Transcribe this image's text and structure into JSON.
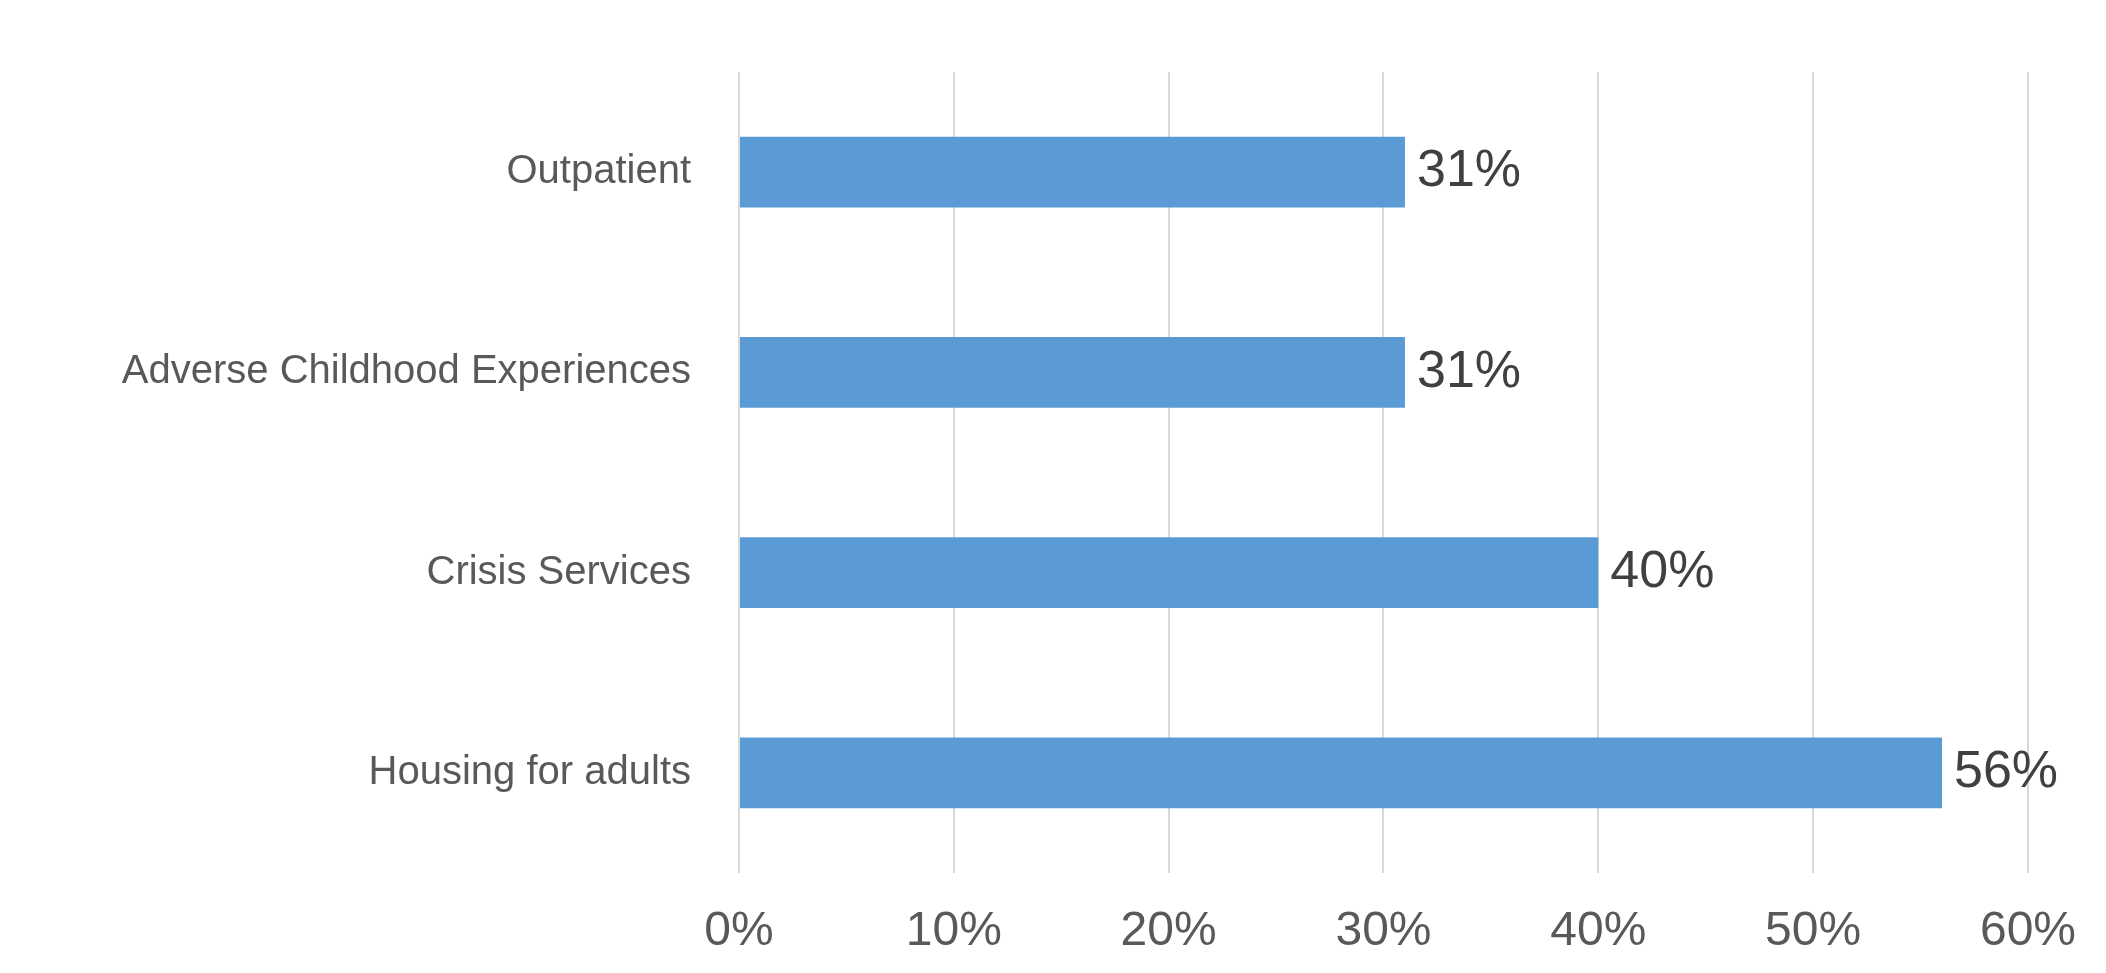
{
  "chart_data": {
    "type": "bar",
    "orientation": "horizontal",
    "categories": [
      "Outpatient",
      "Adverse Childhood Experiences",
      "Crisis Services",
      "Housing for adults"
    ],
    "values": [
      31,
      31,
      40,
      56
    ],
    "color": "#5b9bd5",
    "value_labels": [
      "31%",
      "31%",
      "40%",
      "56%"
    ],
    "xlim": [
      0,
      60
    ],
    "xticks": [
      {
        "value": 0,
        "label": "0%"
      },
      {
        "value": 10,
        "label": "10%"
      },
      {
        "value": 20,
        "label": "20%"
      },
      {
        "value": 30,
        "label": "30%"
      },
      {
        "value": 40,
        "label": "40%"
      },
      {
        "value": 50,
        "label": "50%"
      },
      {
        "value": 60,
        "label": "60%"
      }
    ],
    "grid": "x",
    "legend": false
  }
}
